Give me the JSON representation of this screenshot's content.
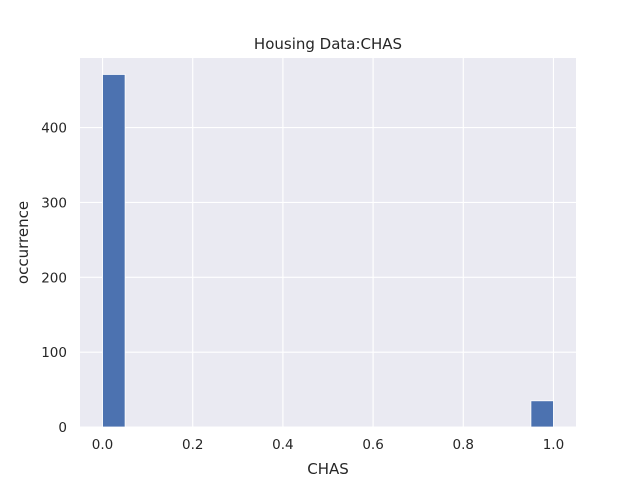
{
  "chart_data": {
    "type": "bar",
    "title": "Housing Data:CHAS",
    "xlabel": "CHAS",
    "ylabel": "occurrence",
    "xlim": [
      -0.05,
      1.05
    ],
    "ylim": [
      0,
      493
    ],
    "x_ticks": [
      0.0,
      0.2,
      0.4,
      0.6,
      0.8,
      1.0
    ],
    "x_tick_labels": [
      "0.0",
      "0.2",
      "0.4",
      "0.6",
      "0.8",
      "1.0"
    ],
    "y_ticks": [
      0,
      100,
      200,
      300,
      400
    ],
    "y_tick_labels": [
      "0",
      "100",
      "200",
      "300",
      "400"
    ],
    "bins": [
      {
        "x0": 0.0,
        "x1": 0.05,
        "value": 471
      },
      {
        "x0": 0.95,
        "x1": 1.0,
        "value": 35
      }
    ],
    "grid": true,
    "background_color": "#eaeaf2",
    "bar_color": "#4c72b0"
  }
}
